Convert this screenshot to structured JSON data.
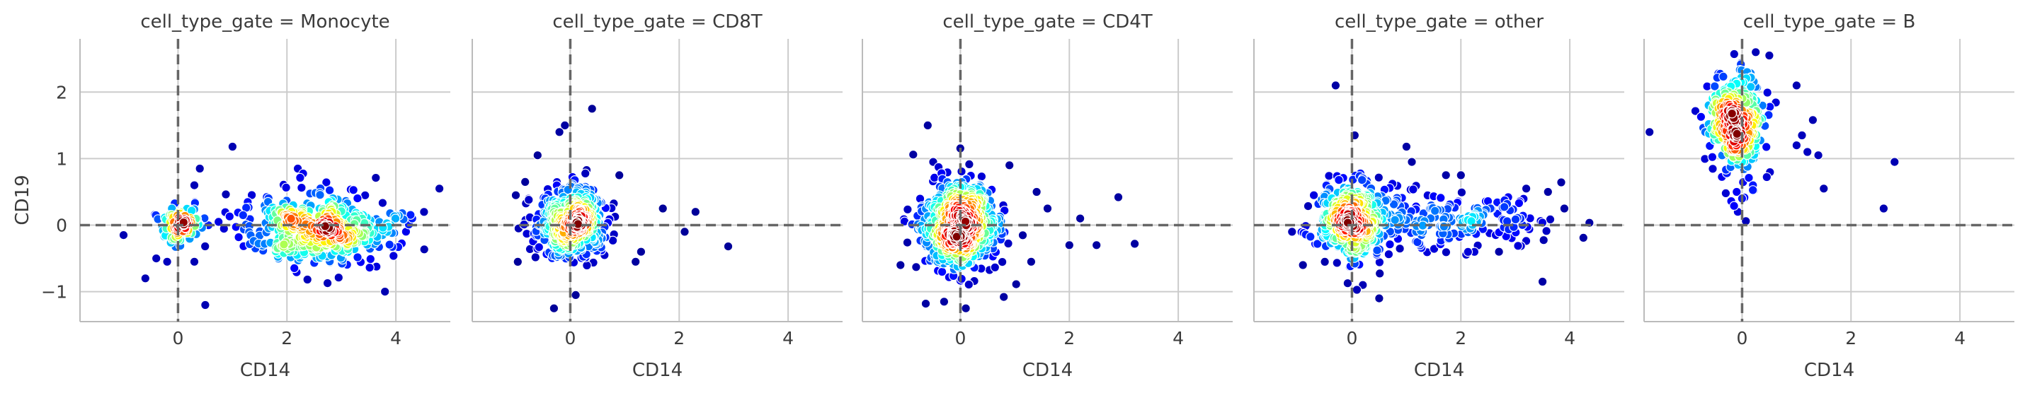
{
  "chart_data": {
    "type": "scatter",
    "facet_variable": "cell_type_gate",
    "color_encoding": "point density (jet colormap)",
    "colormap": [
      "#00007f",
      "#0000ff",
      "#007fff",
      "#00ffff",
      "#7fff7f",
      "#ffff00",
      "#ff7f00",
      "#ff0000",
      "#7f0000"
    ],
    "xlabel": "CD14",
    "ylabel": "CD19",
    "xlim": [
      -1.8,
      5.0
    ],
    "ylim": [
      -1.45,
      2.8
    ],
    "xticks": [
      0,
      2,
      4
    ],
    "yticks": [
      -1,
      0,
      1,
      2
    ],
    "xtick_labels": [
      "0",
      "2",
      "4"
    ],
    "ytick_labels": [
      "−1",
      "0",
      "1",
      "2"
    ],
    "reference_lines": {
      "x": 0,
      "y": 0,
      "style": "dashed"
    },
    "grid": true,
    "panels": [
      {
        "title": "cell_type_gate = Monocyte",
        "clusters": [
          {
            "cx": 2.6,
            "cy": -0.05,
            "sx": 0.7,
            "sy": 0.28,
            "n": 420
          },
          {
            "cx": 0.05,
            "cy": 0.02,
            "sx": 0.2,
            "sy": 0.14,
            "n": 90
          }
        ],
        "outliers": [
          [
            -1.0,
            -0.15
          ],
          [
            -0.6,
            -0.8
          ],
          [
            -0.4,
            -0.5
          ],
          [
            0.3,
            0.6
          ],
          [
            0.4,
            0.85
          ],
          [
            0.5,
            -1.2
          ],
          [
            0.3,
            -0.55
          ],
          [
            1.0,
            1.18
          ],
          [
            2.2,
            0.85
          ],
          [
            4.8,
            0.55
          ],
          [
            4.3,
            0.1
          ],
          [
            3.8,
            -1.0
          ],
          [
            -0.2,
            -0.55
          ]
        ]
      },
      {
        "title": "cell_type_gate = CD8T",
        "clusters": [
          {
            "cx": 0.0,
            "cy": 0.05,
            "sx": 0.32,
            "sy": 0.28,
            "n": 460
          }
        ],
        "outliers": [
          [
            -1.0,
            0.45
          ],
          [
            -0.95,
            -0.05
          ],
          [
            -0.6,
            1.05
          ],
          [
            -0.2,
            1.4
          ],
          [
            -0.1,
            1.5
          ],
          [
            0.4,
            1.75
          ],
          [
            -0.3,
            -1.25
          ],
          [
            0.1,
            -1.05
          ],
          [
            1.3,
            -0.4
          ],
          [
            1.7,
            0.25
          ],
          [
            2.1,
            -0.1
          ],
          [
            2.3,
            0.2
          ],
          [
            2.9,
            -0.32
          ],
          [
            1.2,
            -0.55
          ],
          [
            0.9,
            0.75
          ]
        ]
      },
      {
        "title": "cell_type_gate = CD4T",
        "clusters": [
          {
            "cx": 0.0,
            "cy": 0.0,
            "sx": 0.36,
            "sy": 0.35,
            "n": 560
          }
        ],
        "outliers": [
          [
            -1.1,
            -0.6
          ],
          [
            -0.6,
            1.5
          ],
          [
            -0.5,
            0.95
          ],
          [
            0.1,
            -1.25
          ],
          [
            -0.3,
            -1.15
          ],
          [
            1.6,
            0.25
          ],
          [
            2.0,
            -0.3
          ],
          [
            2.5,
            -0.3
          ],
          [
            2.9,
            0.42
          ],
          [
            3.2,
            -0.28
          ],
          [
            1.3,
            -0.55
          ],
          [
            1.4,
            0.5
          ],
          [
            0.9,
            0.9
          ],
          [
            2.2,
            0.1
          ]
        ]
      },
      {
        "title": "cell_type_gate = other",
        "clusters": [
          {
            "cx": 0.0,
            "cy": 0.05,
            "sx": 0.3,
            "sy": 0.3,
            "n": 360
          },
          {
            "cx": 1.8,
            "cy": 0.1,
            "sx": 0.9,
            "sy": 0.25,
            "n": 200
          }
        ],
        "outliers": [
          [
            -0.3,
            2.1
          ],
          [
            0.05,
            1.35
          ],
          [
            -1.1,
            -0.1
          ],
          [
            -0.9,
            -0.6
          ],
          [
            -0.7,
            0.45
          ],
          [
            0.2,
            -0.9
          ],
          [
            0.5,
            -1.1
          ],
          [
            1.1,
            0.95
          ],
          [
            1.0,
            1.18
          ],
          [
            2.0,
            0.75
          ],
          [
            3.5,
            -0.85
          ],
          [
            3.2,
            0.55
          ],
          [
            3.6,
            0.5
          ],
          [
            3.9,
            0.25
          ],
          [
            2.7,
            -0.4
          ]
        ]
      },
      {
        "title": "cell_type_gate = B",
        "clusters": [
          {
            "cx": -0.1,
            "cy": 1.55,
            "sx": 0.28,
            "sy": 0.38,
            "n": 300
          }
        ],
        "outliers": [
          [
            -1.7,
            1.4
          ],
          [
            -0.1,
            0.5
          ],
          [
            -0.3,
            0.48
          ],
          [
            -0.2,
            0.36
          ],
          [
            0.0,
            0.4
          ],
          [
            0.2,
            0.6
          ],
          [
            1.0,
            1.2
          ],
          [
            1.1,
            1.35
          ],
          [
            1.2,
            1.1
          ],
          [
            1.3,
            1.58
          ],
          [
            1.4,
            1.05
          ],
          [
            1.5,
            0.55
          ],
          [
            2.8,
            0.95
          ],
          [
            2.6,
            0.25
          ],
          [
            1.0,
            2.1
          ],
          [
            0.5,
            2.55
          ],
          [
            0.25,
            2.6
          ]
        ]
      }
    ]
  }
}
